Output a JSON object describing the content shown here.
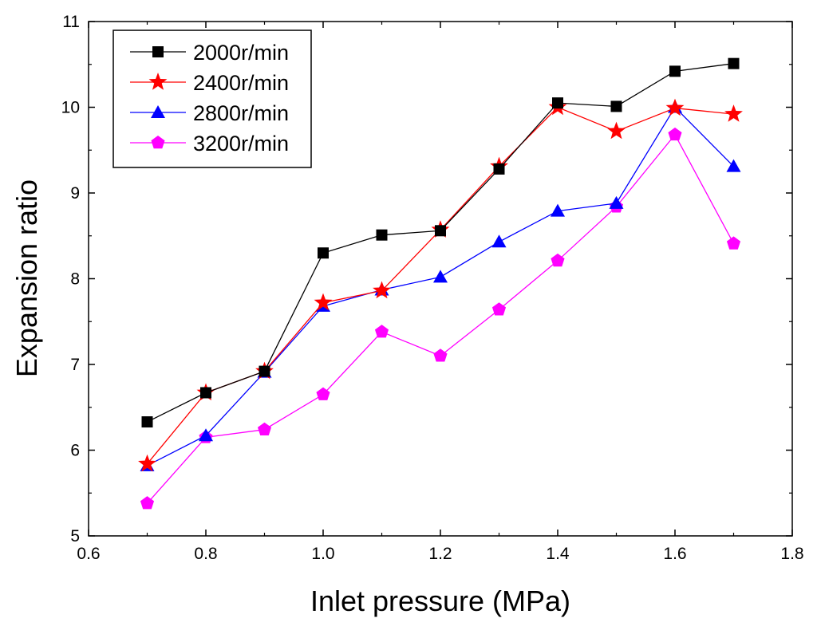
{
  "chart_data": {
    "type": "line",
    "title": "",
    "xlabel": "Inlet pressure (MPa)",
    "ylabel": "Expansion ratio",
    "xlim": [
      0.6,
      1.8
    ],
    "ylim": [
      5,
      11
    ],
    "xticks": [
      "0.6",
      "0.8",
      "1.0",
      "1.2",
      "1.4",
      "1.6",
      "1.8"
    ],
    "yticks": [
      "5",
      "6",
      "7",
      "8",
      "9",
      "10",
      "11"
    ],
    "grid": false,
    "legend_position": "top-left",
    "x": [
      0.7,
      0.8,
      0.9,
      1.0,
      1.1,
      1.2,
      1.3,
      1.4,
      1.5,
      1.6,
      1.7
    ],
    "series": [
      {
        "name": "2000r/min",
        "color": "#000000",
        "marker": "square",
        "values": [
          6.33,
          6.67,
          6.92,
          8.3,
          8.51,
          8.56,
          9.28,
          10.05,
          10.01,
          10.42,
          10.51
        ]
      },
      {
        "name": "2400r/min",
        "color": "#ff0000",
        "marker": "star",
        "values": [
          5.84,
          6.67,
          6.92,
          7.72,
          7.86,
          8.57,
          9.31,
          10.0,
          9.72,
          9.99,
          9.92
        ]
      },
      {
        "name": "2800r/min",
        "color": "#0000ff",
        "marker": "triangle",
        "values": [
          5.82,
          6.17,
          6.91,
          7.68,
          7.87,
          8.02,
          8.43,
          8.79,
          8.88,
          10.0,
          9.31
        ]
      },
      {
        "name": "3200r/min",
        "color": "#ff00ff",
        "marker": "pentagon",
        "values": [
          5.38,
          6.15,
          6.24,
          6.65,
          7.38,
          7.1,
          7.64,
          8.21,
          8.84,
          9.68,
          8.41
        ]
      }
    ]
  }
}
